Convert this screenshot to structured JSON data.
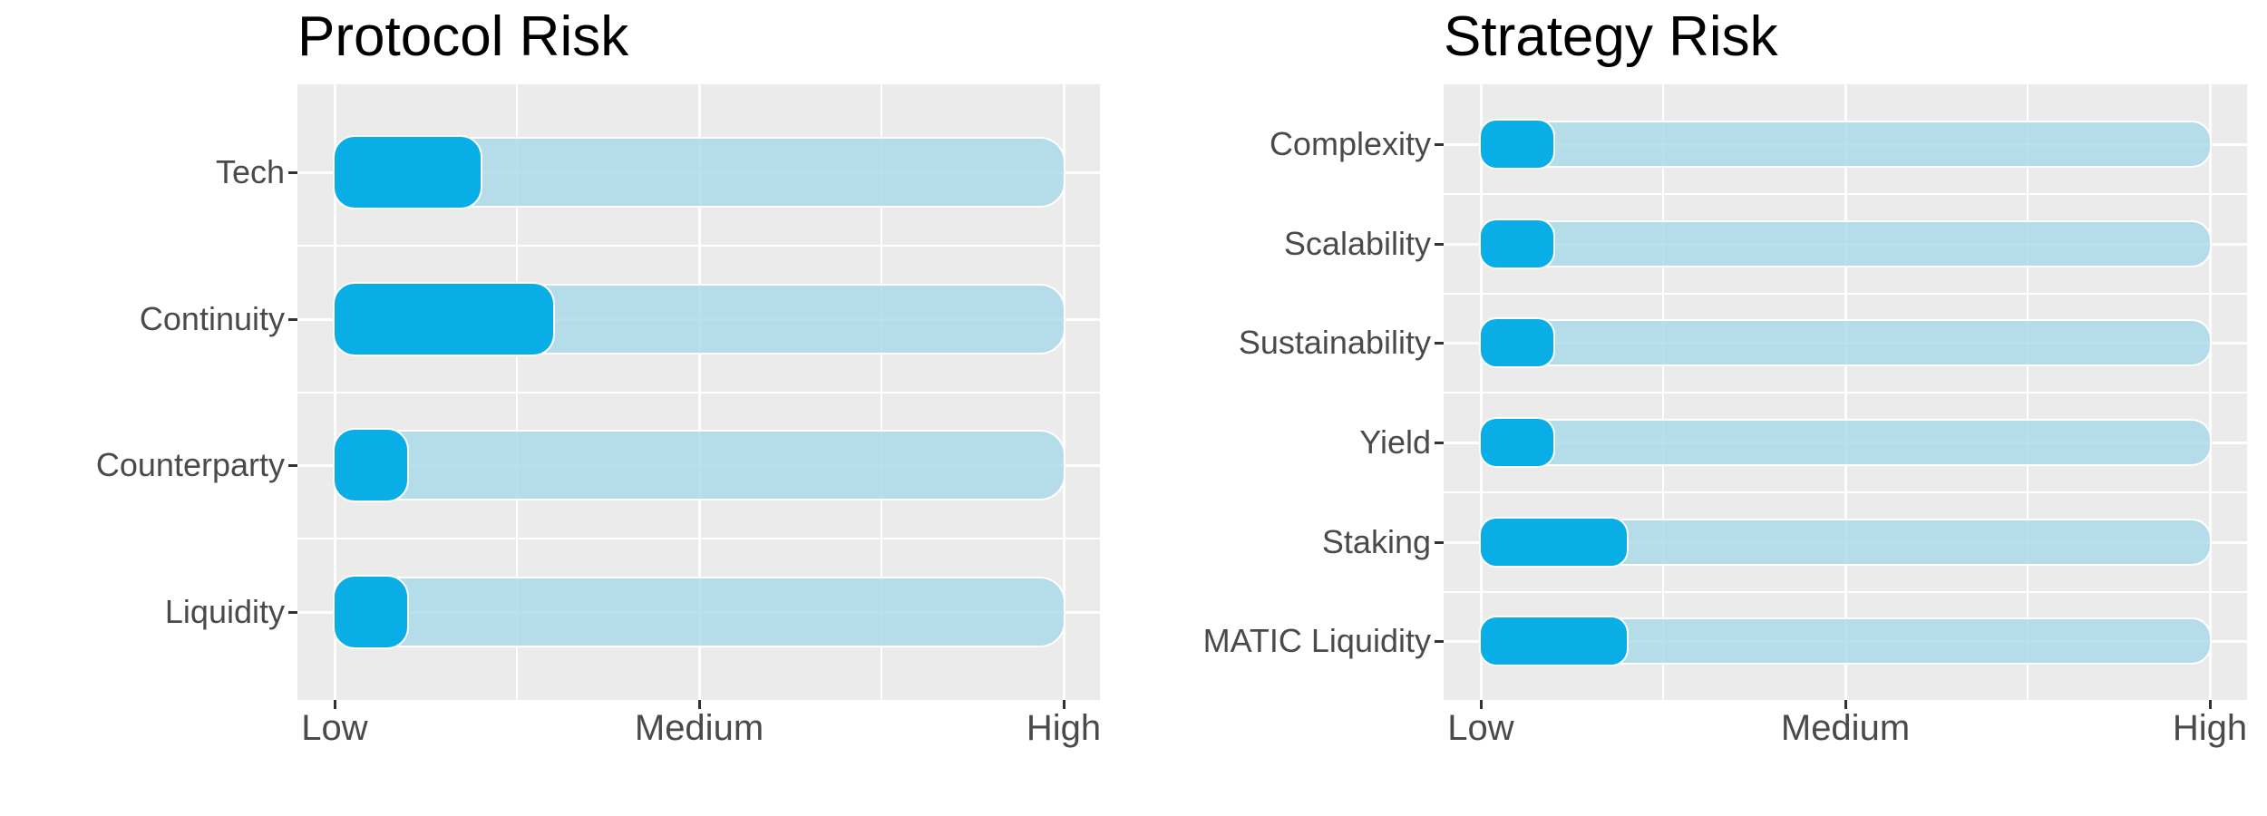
{
  "page": {
    "background_color": "#FFFFFF",
    "description": "Two horizontal bullet-style risk rating charts"
  },
  "style": {
    "panel_bg": "#EBEBEB",
    "grid_color": "#FFFFFF",
    "bar_color": "#0AAEE6",
    "track_color_rgba": "rgba(168,216,232,0.8)",
    "bar_stroke": "#FFFFFF",
    "axis_text_color": "#4A4A4A",
    "tick_mark_color": "#333333",
    "title_color": "#000000"
  },
  "chart_data": [
    {
      "type": "bar",
      "title": "Protocol Risk",
      "orientation": "horizontal",
      "categories": [
        "Tech",
        "Continuity",
        "Counterparty",
        "Liquidity"
      ],
      "values": [
        1.4,
        1.6,
        1.2,
        1.2
      ],
      "track_values": [
        3,
        3,
        3,
        3
      ],
      "value_axis": {
        "min": 1,
        "max": 3,
        "tick_values": [
          1,
          2,
          3
        ],
        "tick_labels": [
          "Low",
          "Medium",
          "High"
        ],
        "minor_tick_values": [
          1.5,
          2.5
        ]
      },
      "xlabel": "",
      "ylabel": "",
      "legend": "none",
      "grid": "white major+minor on gray panel"
    },
    {
      "type": "bar",
      "title": "Strategy Risk",
      "orientation": "horizontal",
      "categories": [
        "Complexity",
        "Scalability",
        "Sustainability",
        "Yield",
        "Staking",
        "MATIC Liquidity"
      ],
      "values": [
        1.2,
        1.2,
        1.2,
        1.2,
        1.4,
        1.4
      ],
      "track_values": [
        3,
        3,
        3,
        3,
        3,
        3
      ],
      "value_axis": {
        "min": 1,
        "max": 3,
        "tick_values": [
          1,
          2,
          3
        ],
        "tick_labels": [
          "Low",
          "Medium",
          "High"
        ],
        "minor_tick_values": [
          1.5,
          2.5
        ]
      },
      "xlabel": "",
      "ylabel": "",
      "legend": "none",
      "grid": "white major+minor on gray panel"
    }
  ]
}
